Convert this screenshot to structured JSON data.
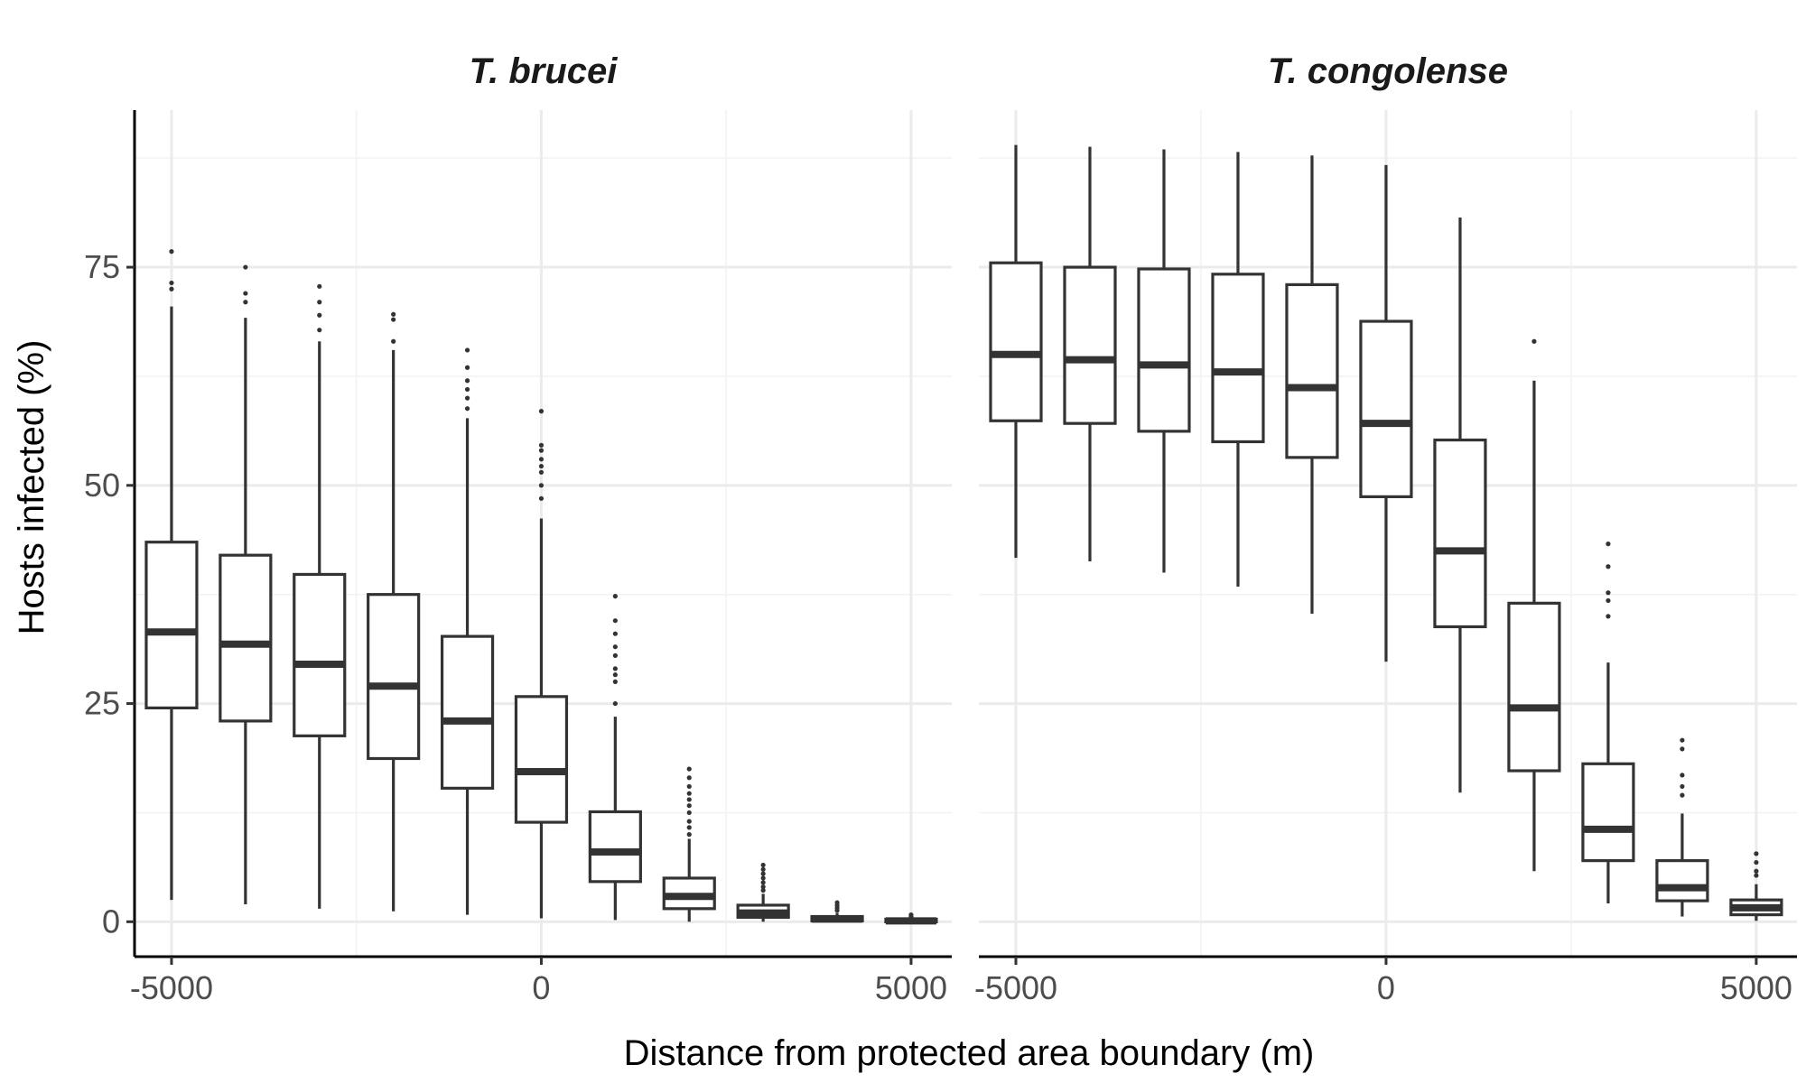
{
  "chart_data": {
    "type": "box",
    "xlabel": "Distance from protected area boundary (m)",
    "ylabel": "Hosts infected (%)",
    "xlim": [
      -5500,
      5550
    ],
    "ylim": [
      -4,
      93
    ],
    "x_ticks": [
      -5000,
      0,
      5000
    ],
    "y_ticks": [
      0,
      25,
      50,
      75
    ],
    "grid": true,
    "panels": [
      {
        "title": "T. brucei",
        "boxes": [
          {
            "x": -5000,
            "lower": 2.5,
            "q1": 24.5,
            "median": 33.2,
            "q3": 43.5,
            "upper": 70.5,
            "outliers": [
              72.5,
              73.2,
              76.8
            ]
          },
          {
            "x": -4000,
            "lower": 2.0,
            "q1": 23.0,
            "median": 31.8,
            "q3": 42.0,
            "upper": 69.2,
            "outliers": [
              71.0,
              72.0,
              75.0
            ]
          },
          {
            "x": -3000,
            "lower": 1.5,
            "q1": 21.3,
            "median": 29.5,
            "q3": 39.8,
            "upper": 66.5,
            "outliers": [
              67.8,
              69.5,
              71.0,
              72.8
            ]
          },
          {
            "x": -2000,
            "lower": 1.2,
            "q1": 18.7,
            "median": 27.0,
            "q3": 37.5,
            "upper": 65.5,
            "outliers": [
              66.5,
              69.0,
              69.6
            ]
          },
          {
            "x": -1000,
            "lower": 0.8,
            "q1": 15.3,
            "median": 23.0,
            "q3": 32.7,
            "upper": 57.7,
            "outliers": [
              58.8,
              60.0,
              61.0,
              62.0,
              63.5,
              65.5
            ]
          },
          {
            "x": 0,
            "lower": 0.4,
            "q1": 11.4,
            "median": 17.2,
            "q3": 25.8,
            "upper": 46.2,
            "outliers": [
              48.5,
              50.0,
              51.5,
              52.2,
              53.0,
              54.0,
              54.6,
              58.5
            ]
          },
          {
            "x": 1000,
            "lower": 0.2,
            "q1": 4.6,
            "median": 8.0,
            "q3": 12.6,
            "upper": 23.5,
            "outliers": [
              25.0,
              27.5,
              28.3,
              29.0,
              30.5,
              31.5,
              33.0,
              34.5,
              37.3
            ]
          },
          {
            "x": 2000,
            "lower": 0.0,
            "q1": 1.5,
            "median": 2.9,
            "q3": 5.0,
            "upper": 9.5,
            "outliers": [
              10.0,
              10.8,
              11.5,
              12.5,
              13.3,
              14.0,
              14.7,
              15.5,
              16.5,
              17.5
            ]
          },
          {
            "x": 3000,
            "lower": 0.0,
            "q1": 0.5,
            "median": 1.0,
            "q3": 1.9,
            "upper": 3.2,
            "outliers": [
              3.6,
              4.0,
              4.5,
              5.0,
              5.5,
              6.0,
              6.5
            ]
          },
          {
            "x": 4000,
            "lower": 0.0,
            "q1": 0.1,
            "median": 0.3,
            "q3": 0.6,
            "upper": 1.0,
            "outliers": [
              1.3,
              1.6,
              1.9,
              2.2
            ]
          },
          {
            "x": 5000,
            "lower": 0.0,
            "q1": 0.0,
            "median": 0.1,
            "q3": 0.3,
            "upper": 0.5,
            "outliers": [
              0.6,
              0.8
            ]
          }
        ]
      },
      {
        "title": "T. congolense",
        "boxes": [
          {
            "x": -5000,
            "lower": 41.7,
            "q1": 57.4,
            "median": 65.0,
            "q3": 75.5,
            "upper": 89.0,
            "outliers": []
          },
          {
            "x": -4000,
            "lower": 41.3,
            "q1": 57.1,
            "median": 64.4,
            "q3": 75.0,
            "upper": 88.8,
            "outliers": []
          },
          {
            "x": -3000,
            "lower": 40.0,
            "q1": 56.2,
            "median": 63.8,
            "q3": 74.8,
            "upper": 88.5,
            "outliers": []
          },
          {
            "x": -2000,
            "lower": 38.4,
            "q1": 55.0,
            "median": 63.0,
            "q3": 74.2,
            "upper": 88.2,
            "outliers": []
          },
          {
            "x": -1000,
            "lower": 35.3,
            "q1": 53.2,
            "median": 61.2,
            "q3": 73.0,
            "upper": 87.8,
            "outliers": []
          },
          {
            "x": 0,
            "lower": 29.8,
            "q1": 48.7,
            "median": 57.1,
            "q3": 68.8,
            "upper": 86.7,
            "outliers": []
          },
          {
            "x": 1000,
            "lower": 14.8,
            "q1": 33.8,
            "median": 42.5,
            "q3": 55.2,
            "upper": 80.7,
            "outliers": []
          },
          {
            "x": 2000,
            "lower": 5.8,
            "q1": 17.3,
            "median": 24.5,
            "q3": 36.5,
            "upper": 62.0,
            "outliers": [
              66.5
            ]
          },
          {
            "x": 3000,
            "lower": 2.1,
            "q1": 7.0,
            "median": 10.6,
            "q3": 18.1,
            "upper": 29.7,
            "outliers": [
              35.0,
              36.8,
              37.7,
              40.7,
              43.3
            ]
          },
          {
            "x": 4000,
            "lower": 0.6,
            "q1": 2.4,
            "median": 3.9,
            "q3": 7.0,
            "upper": 12.4,
            "outliers": [
              14.5,
              15.5,
              16.8,
              19.8,
              20.8
            ]
          },
          {
            "x": 5000,
            "lower": 0.1,
            "q1": 0.8,
            "median": 1.6,
            "q3": 2.5,
            "upper": 4.3,
            "outliers": [
              5.3,
              5.8,
              6.8,
              7.8
            ]
          }
        ]
      }
    ]
  }
}
